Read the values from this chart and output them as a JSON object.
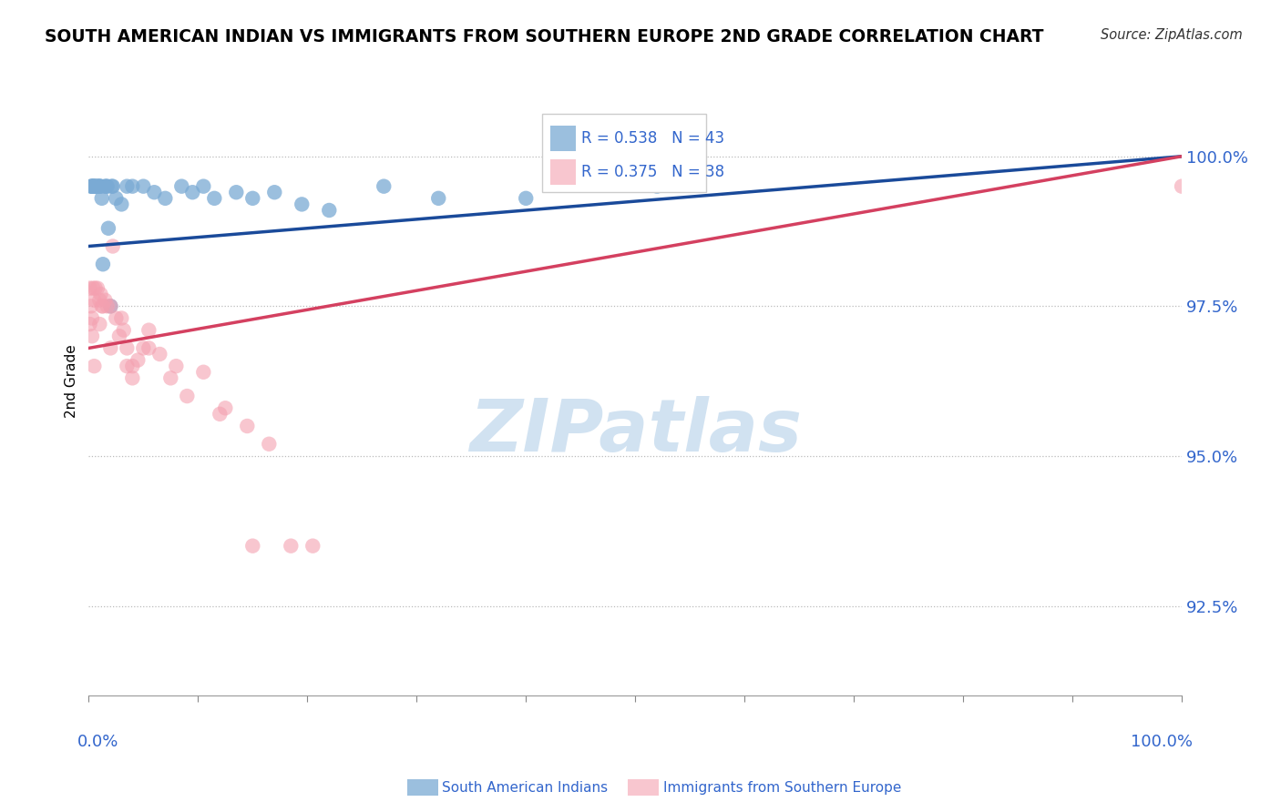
{
  "title": "SOUTH AMERICAN INDIAN VS IMMIGRANTS FROM SOUTHERN EUROPE 2ND GRADE CORRELATION CHART",
  "source": "Source: ZipAtlas.com",
  "ylabel": "2nd Grade",
  "yticks": [
    92.5,
    95.0,
    97.5,
    100.0
  ],
  "ytick_labels": [
    "92.5%",
    "95.0%",
    "97.5%",
    "100.0%"
  ],
  "xmin": 0.0,
  "xmax": 100.0,
  "ymin": 91.0,
  "ymax": 101.5,
  "blue_color": "#7aaad4",
  "pink_color": "#f4a0b0",
  "blue_line_color": "#1a4a9a",
  "pink_line_color": "#d44060",
  "label_color": "#3366cc",
  "blue_r": "0.538",
  "blue_n": "43",
  "pink_r": "0.375",
  "pink_n": "38",
  "blue_legend_label": "South American Indians",
  "pink_legend_label": "Immigrants from Southern Europe",
  "blue_trendline_x0": 0.0,
  "blue_trendline_y0": 98.5,
  "blue_trendline_x1": 100.0,
  "blue_trendline_y1": 100.0,
  "pink_trendline_x0": 0.0,
  "pink_trendline_y0": 96.8,
  "pink_trendline_x1": 100.0,
  "pink_trendline_y1": 100.0,
  "blue_x": [
    0.2,
    0.3,
    0.3,
    0.4,
    0.4,
    0.5,
    0.5,
    0.6,
    0.7,
    0.8,
    0.9,
    1.0,
    1.0,
    1.1,
    1.2,
    1.3,
    1.5,
    1.6,
    1.7,
    1.8,
    2.0,
    2.1,
    2.2,
    2.5,
    3.0,
    3.5,
    4.0,
    5.0,
    6.0,
    7.0,
    8.5,
    9.5,
    10.5,
    11.5,
    13.5,
    15.0,
    17.0,
    19.5,
    22.0,
    27.0,
    32.0,
    40.0,
    52.0
  ],
  "blue_y": [
    99.5,
    99.5,
    99.5,
    99.5,
    99.5,
    99.5,
    99.5,
    99.5,
    99.5,
    99.5,
    99.5,
    99.5,
    99.5,
    99.5,
    99.3,
    98.2,
    99.5,
    99.5,
    99.5,
    98.8,
    97.5,
    99.5,
    99.5,
    99.3,
    99.2,
    99.5,
    99.5,
    99.5,
    99.4,
    99.3,
    99.5,
    99.4,
    99.5,
    99.3,
    99.4,
    99.3,
    99.4,
    99.2,
    99.1,
    99.5,
    99.3,
    99.3,
    99.5
  ],
  "pink_x": [
    0.1,
    0.2,
    0.3,
    0.4,
    0.5,
    0.6,
    0.8,
    1.0,
    1.1,
    1.3,
    1.5,
    1.7,
    2.0,
    2.2,
    2.5,
    2.8,
    3.0,
    3.2,
    3.5,
    4.0,
    4.5,
    5.0,
    5.5,
    6.5,
    7.5,
    9.0,
    10.5,
    12.5,
    14.5,
    16.5,
    18.5,
    20.5,
    100.0
  ],
  "pink_y": [
    97.8,
    97.5,
    97.3,
    97.8,
    97.6,
    97.8,
    97.8,
    97.6,
    97.7,
    97.5,
    97.6,
    97.5,
    97.5,
    98.5,
    97.3,
    97.0,
    97.3,
    97.1,
    96.8,
    96.5,
    96.6,
    96.8,
    97.1,
    96.7,
    96.3,
    96.0,
    96.4,
    95.8,
    95.5,
    95.2,
    93.5,
    93.5,
    99.5
  ],
  "pink_x2": [
    0.1,
    0.3,
    0.5,
    1.0,
    1.2,
    2.0,
    3.5,
    4.0,
    5.5,
    8.0,
    12.0,
    15.0
  ],
  "pink_y2": [
    97.2,
    97.0,
    96.5,
    97.2,
    97.5,
    96.8,
    96.5,
    96.3,
    96.8,
    96.5,
    95.7,
    93.5
  ]
}
